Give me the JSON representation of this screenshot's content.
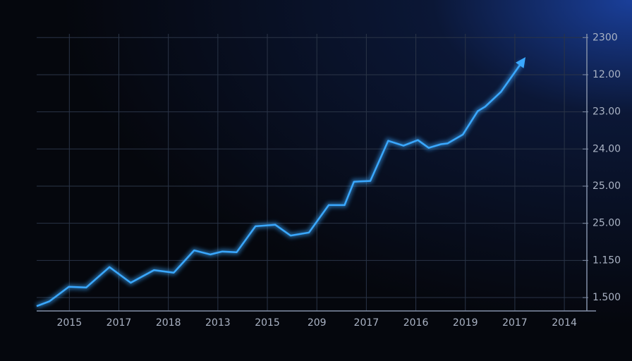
{
  "chart_data": {
    "type": "line",
    "x": [
      -0.66,
      -0.4,
      -0.01,
      0.34,
      0.81,
      1.24,
      1.71,
      2.11,
      2.52,
      2.85,
      3.09,
      3.38,
      3.76,
      4.16,
      4.47,
      4.84,
      5.24,
      5.56,
      5.75,
      6.08,
      6.44,
      6.75,
      7.04,
      7.26,
      7.51,
      7.64,
      7.95,
      8.25,
      8.4,
      8.72,
      9.15
    ],
    "values": [
      -0.23,
      -0.1,
      0.29,
      0.27,
      0.82,
      0.4,
      0.74,
      0.67,
      1.27,
      1.16,
      1.24,
      1.22,
      1.92,
      1.96,
      1.67,
      1.75,
      2.49,
      2.49,
      3.12,
      3.14,
      4.22,
      4.09,
      4.24,
      4.03,
      4.13,
      4.15,
      4.39,
      5.02,
      5.14,
      5.54,
      6.35
    ],
    "color": "#3aa8ff",
    "xlim": [
      -0.66,
      10.64
    ],
    "xticks": [
      {
        "value": 0,
        "label": "2015"
      },
      {
        "value": 1,
        "label": "2017"
      },
      {
        "value": 2,
        "label": "2018"
      },
      {
        "value": 3,
        "label": "2013"
      },
      {
        "value": 4,
        "label": "2015"
      },
      {
        "value": 5,
        "label": "209"
      },
      {
        "value": 6,
        "label": "2017"
      },
      {
        "value": 7,
        "label": "2016"
      },
      {
        "value": 8,
        "label": "2019"
      },
      {
        "value": 9,
        "label": "2017"
      },
      {
        "value": 10,
        "label": "2014"
      }
    ],
    "ylim": [
      -0.36,
      7.1
    ],
    "yticks": [
      {
        "value": 0,
        "label": "1.500"
      },
      {
        "value": 1,
        "label": "1.150"
      },
      {
        "value": 2,
        "label": "25.00"
      },
      {
        "value": 3,
        "label": "25.00"
      },
      {
        "value": 4,
        "label": "24.00"
      },
      {
        "value": 5,
        "label": "23.00"
      },
      {
        "value": 6,
        "label": "12.00"
      },
      {
        "value": 7,
        "label": "2300"
      }
    ],
    "grid": true
  }
}
